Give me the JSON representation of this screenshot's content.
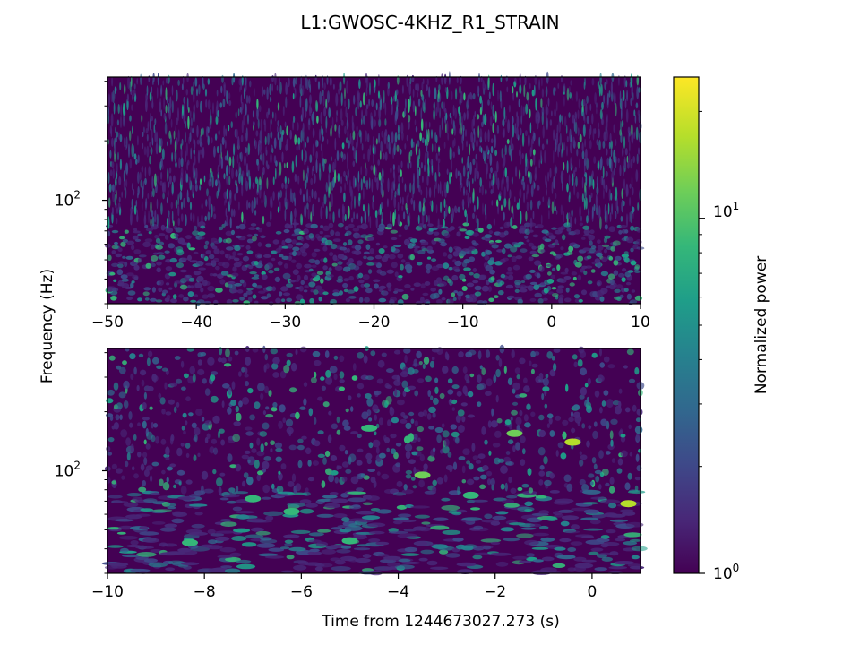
{
  "colors": {
    "colormap": [
      "#440154",
      "#482878",
      "#3e4989",
      "#31688e",
      "#26828e",
      "#1f9e89",
      "#35b779",
      "#6ece58",
      "#b5de2b",
      "#fde725"
    ],
    "axis": "#000000",
    "background": "#ffffff"
  },
  "chart_data": [
    {
      "type": "heatmap",
      "title": "L1:GWOSC-4KHZ_R1_STRAIN",
      "panel": "top",
      "xlim": [
        -50,
        10
      ],
      "xticks": [
        -50,
        -40,
        -30,
        -20,
        -10,
        0,
        10
      ],
      "xtick_labels": [
        "−50",
        "−40",
        "−30",
        "−20",
        "−10",
        "0",
        "10"
      ],
      "yscale": "log",
      "ylim": [
        30,
        420
      ],
      "yticks": [
        100
      ],
      "ytick_labels": [
        "10",
        "2"
      ],
      "ylabel": "Frequency (Hz)",
      "xlabel": ""
    },
    {
      "type": "heatmap",
      "panel": "bottom",
      "xlim": [
        -10,
        1
      ],
      "xticks": [
        -10,
        -8,
        -6,
        -4,
        -2,
        0
      ],
      "xtick_labels": [
        "−10",
        "−8",
        "−6",
        "−4",
        "−2",
        "0"
      ],
      "yscale": "log",
      "ylim": [
        30,
        420
      ],
      "yticks": [
        100
      ],
      "ytick_labels": [
        "10",
        "2"
      ],
      "xlabel": "Time from 1244673027.273 (s)",
      "hotspots": [
        {
          "x": 0.75,
          "y": 68,
          "value": 20
        },
        {
          "x": -0.4,
          "y": 140,
          "value": 15
        },
        {
          "x": -1.6,
          "y": 155,
          "value": 13
        },
        {
          "x": -3.5,
          "y": 95,
          "value": 12
        },
        {
          "x": -6.2,
          "y": 62,
          "value": 10
        },
        {
          "x": -8.3,
          "y": 43,
          "value": 10
        },
        {
          "x": -5.0,
          "y": 44,
          "value": 9
        },
        {
          "x": -7.0,
          "y": 72,
          "value": 9
        },
        {
          "x": -4.6,
          "y": 165,
          "value": 9
        },
        {
          "x": -2.5,
          "y": 75,
          "value": 8
        }
      ]
    }
  ],
  "colorbar": {
    "label": "Normalized power",
    "scale": "log",
    "range": [
      1,
      25
    ],
    "tick_labels": [
      {
        "base": "10",
        "exp": "1"
      },
      {
        "base": "10",
        "exp": "0"
      }
    ]
  },
  "ylabel_shared": "Frequency (Hz)"
}
